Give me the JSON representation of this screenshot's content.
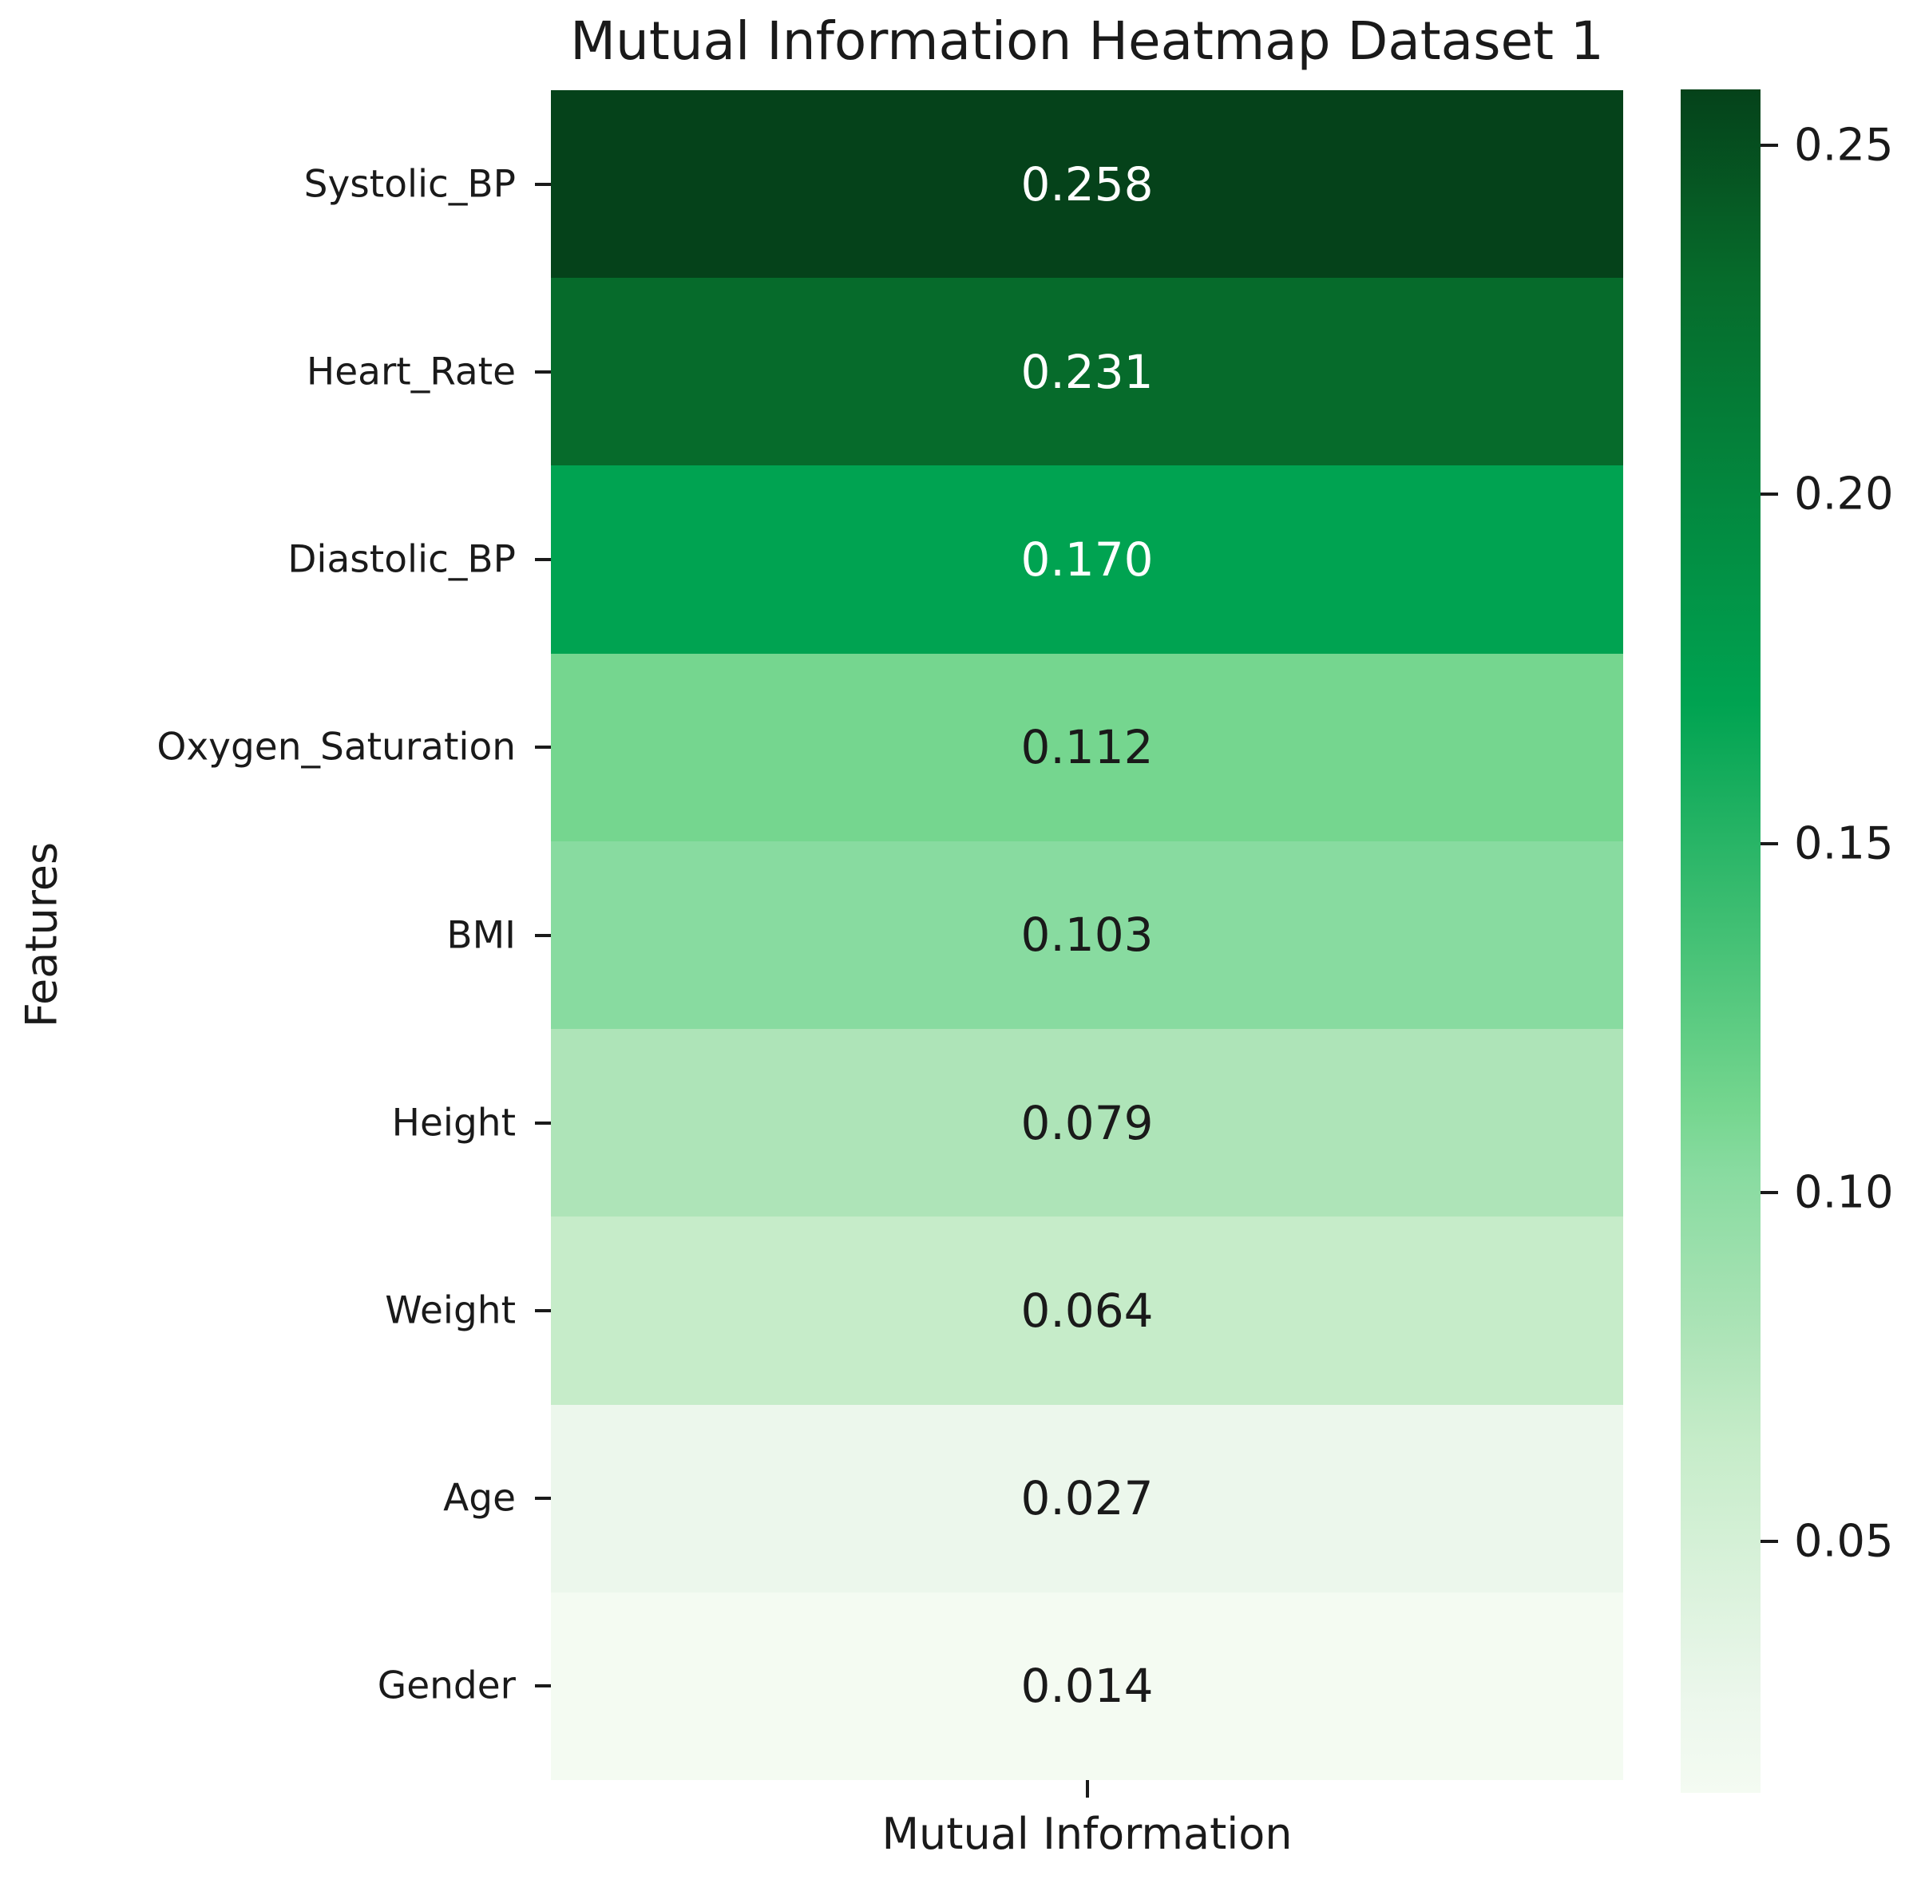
{
  "chart_data": {
    "type": "heatmap",
    "title": "Mutual Information Heatmap Dataset 1",
    "xlabel": "Mutual Information",
    "ylabel": "Features",
    "columns": [
      "Mutual Information"
    ],
    "rows": [
      {
        "label": "Systolic_BP",
        "value": "0.258",
        "value_num": 0.258,
        "color": "#05421a",
        "text_color": "#ffffff"
      },
      {
        "label": "Heart_Rate",
        "value": "0.231",
        "value_num": 0.231,
        "color": "#066b2b",
        "text_color": "#ffffff"
      },
      {
        "label": "Diastolic_BP",
        "value": "0.170",
        "value_num": 0.17,
        "color": "#00a351",
        "text_color": "#ffffff"
      },
      {
        "label": "Oxygen_Saturation",
        "value": "0.112",
        "value_num": 0.112,
        "color": "#75d68f",
        "text_color": "#1a1a1a"
      },
      {
        "label": "BMI",
        "value": "0.103",
        "value_num": 0.103,
        "color": "#88dba0",
        "text_color": "#1a1a1a"
      },
      {
        "label": "Height",
        "value": "0.079",
        "value_num": 0.079,
        "color": "#aee4b8",
        "text_color": "#1a1a1a"
      },
      {
        "label": "Weight",
        "value": "0.064",
        "value_num": 0.064,
        "color": "#c6ecc9",
        "text_color": "#1a1a1a"
      },
      {
        "label": "Age",
        "value": "0.027",
        "value_num": 0.027,
        "color": "#ecf7ec",
        "text_color": "#1a1a1a"
      },
      {
        "label": "Gender",
        "value": "0.014",
        "value_num": 0.014,
        "color": "#f4fbf2",
        "text_color": "#1a1a1a"
      }
    ],
    "colorbar": {
      "vmin": 0.014,
      "vmax": 0.258,
      "ticks": [
        {
          "label": "0.25",
          "value": 0.25
        },
        {
          "label": "0.20",
          "value": 0.2
        },
        {
          "label": "0.15",
          "value": 0.15
        },
        {
          "label": "0.10",
          "value": 0.1
        },
        {
          "label": "0.05",
          "value": 0.05
        }
      ],
      "gradient_stops": [
        {
          "pos": 0,
          "color": "#05421a"
        },
        {
          "pos": 11.1,
          "color": "#066b2b"
        },
        {
          "pos": 36.1,
          "color": "#00a351"
        },
        {
          "pos": 59.8,
          "color": "#75d68f"
        },
        {
          "pos": 63.5,
          "color": "#88dba0"
        },
        {
          "pos": 73.4,
          "color": "#aee4b8"
        },
        {
          "pos": 79.5,
          "color": "#c6ecc9"
        },
        {
          "pos": 94.7,
          "color": "#ecf7ec"
        },
        {
          "pos": 100,
          "color": "#f4fbf2"
        }
      ]
    },
    "grid": false,
    "legend": "colorbar-right"
  }
}
